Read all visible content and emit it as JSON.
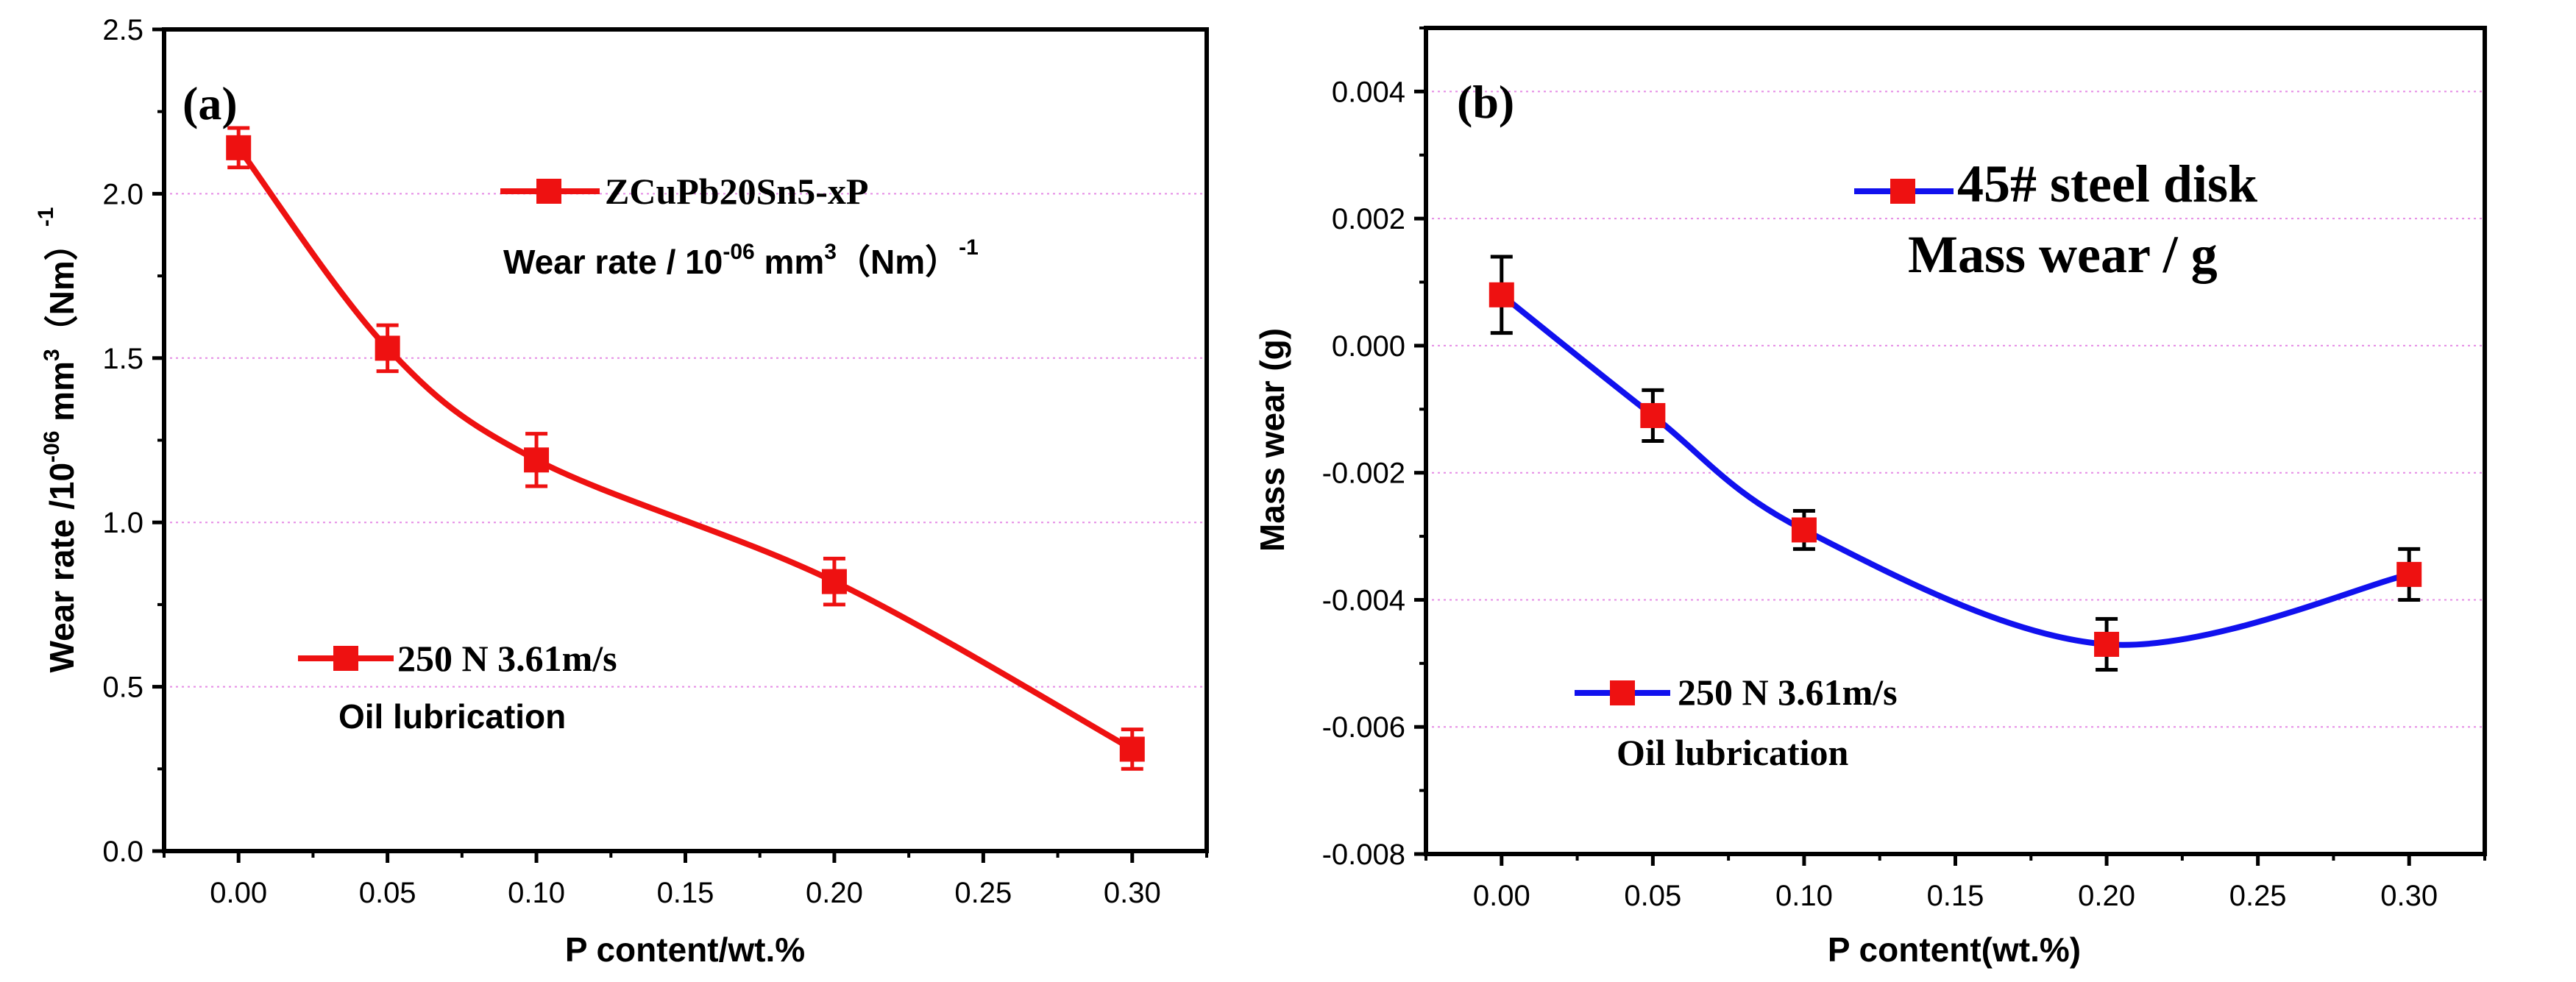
{
  "chart_data": [
    {
      "type": "line",
      "panel_label": "(a)",
      "x": [
        0.0,
        0.05,
        0.1,
        0.2,
        0.3
      ],
      "series": [
        {
          "name": "ZCuPb20Sn5-xP",
          "values": [
            2.14,
            1.53,
            1.19,
            0.82,
            0.31
          ],
          "errors": [
            0.06,
            0.07,
            0.08,
            0.07,
            0.06
          ],
          "color": "#ee1111"
        }
      ],
      "xlabel": "P content/wt.%",
      "ylabel_parts": {
        "main": "Wear rate /10",
        "exp": "-06",
        "unit": " mm",
        "unit_exp": "3",
        "rest": "（Nm）",
        "rest_exp": "-1"
      },
      "xlim": [
        -0.025,
        0.325
      ],
      "ylim": [
        0.0,
        2.5
      ],
      "xticks": [
        "0.00",
        "0.05",
        "0.10",
        "0.15",
        "0.20",
        "0.25",
        "0.30"
      ],
      "yticks": [
        "0.0",
        "0.5",
        "1.0",
        "1.5",
        "2.0",
        "2.5"
      ],
      "legend": {
        "label": "ZCuPb20Sn5-xP",
        "position": "top-center"
      },
      "annotations": {
        "measure_main": "Wear rate / 10",
        "measure_exp": "-06",
        "measure_unit": " mm",
        "measure_unit_exp": "3",
        "measure_rest": "（Nm）",
        "measure_rest_exp": "-1",
        "condition": "250 N 3.61m/s",
        "lubrication": "Oil lubrication"
      },
      "grid": "horizontal-dotted"
    },
    {
      "type": "line",
      "panel_label": "(b)",
      "x": [
        0.0,
        0.05,
        0.1,
        0.2,
        0.3
      ],
      "series": [
        {
          "name": "45# steel disk",
          "values": [
            0.0008,
            -0.0011,
            -0.0029,
            -0.0047,
            -0.0036
          ],
          "errors": [
            0.0006,
            0.0004,
            0.0003,
            0.0004,
            0.0004
          ],
          "color": "#1111ee",
          "marker_color": "#ee1111"
        }
      ],
      "xlabel": "P content(wt.%)",
      "ylabel": "Mass wear (g)",
      "xlim": [
        -0.025,
        0.325
      ],
      "ylim": [
        -0.008,
        0.005
      ],
      "xticks": [
        "0.00",
        "0.05",
        "0.10",
        "0.15",
        "0.20",
        "0.25",
        "0.30"
      ],
      "yticks": [
        "-0.008",
        "-0.006",
        "-0.004",
        "-0.002",
        "0.000",
        "0.002",
        "0.004"
      ],
      "legend": {
        "label": "45# steel disk",
        "position": "top-center"
      },
      "annotations": {
        "measure": "Mass wear  / g",
        "condition": "250 N 3.61m/s",
        "lubrication": "Oil lubrication"
      },
      "grid": "horizontal-dotted"
    }
  ]
}
